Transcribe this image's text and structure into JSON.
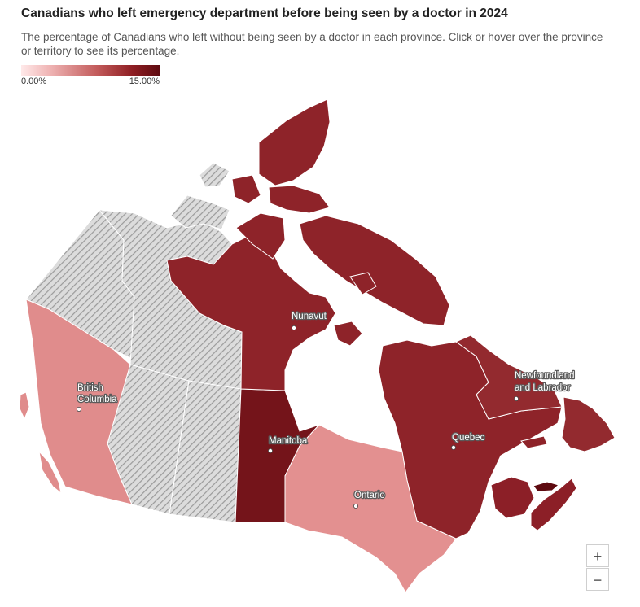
{
  "header": {
    "title": "Canadians who left emergency department before being seen by a doctor in 2024",
    "subtitle": "The percentage of Canadians who left without being seen by a doctor in each province. Click or hover over the province or territory to see its percentage."
  },
  "legend": {
    "min_label": "0.00%",
    "max_label": "15.00%",
    "min_value": 0,
    "max_value": 15,
    "color_low": "#ffe9e9",
    "color_high": "#5e0a10"
  },
  "colors": {
    "no_data_fill": "#d0d0d0",
    "no_data_hatch": "#9a9a9a",
    "border": "#ffffff"
  },
  "regions": {
    "nunavut": {
      "label": "Nunavut",
      "color": "#8e2329"
    },
    "bc": {
      "label_line1": "British",
      "label_line2": "Columbia",
      "color": "#e08c8c"
    },
    "manitoba": {
      "label": "Manitoba",
      "color": "#74141a"
    },
    "ontario": {
      "label": "Ontario",
      "color": "#e39090"
    },
    "quebec": {
      "label": "Quebec",
      "color": "#8e2329"
    },
    "nl": {
      "label_line1": "Newfoundland",
      "label_line2": "and Labrador",
      "color": "#932a2f"
    },
    "nova_scotia": {
      "color": "#8c1f27"
    },
    "new_brunswick": {
      "color": "#8c1f27"
    },
    "pei": {
      "color": "#5e0a10"
    }
  },
  "controls": {
    "zoom_in": "+",
    "zoom_out": "−"
  }
}
